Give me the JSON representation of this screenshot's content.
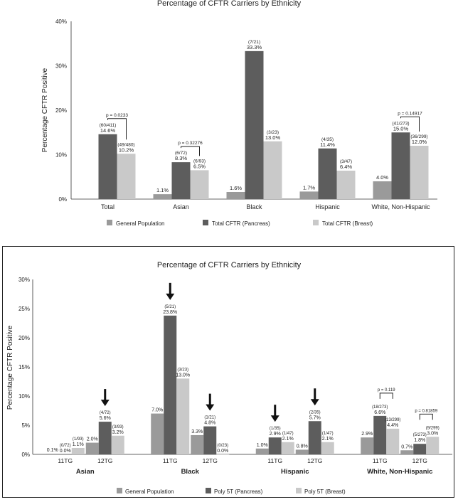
{
  "chart_data": [
    {
      "type": "bar",
      "title": "Percentage of CFTR Carriers by Ethnicity",
      "xlabel": "",
      "ylabel": "Percentage CFTR Positive",
      "ylim": [
        0,
        40
      ],
      "yticks": [
        "0%",
        "10%",
        "20%",
        "30%",
        "40%"
      ],
      "grid": false,
      "legend_position": "bottom",
      "categories": [
        "Total",
        "Asian",
        "Black",
        "Hispanic",
        "White, Non-Hispanic"
      ],
      "series": [
        {
          "name": "General Population",
          "color": "#9a9a9a",
          "values": [
            null,
            1.1,
            1.6,
            1.7,
            4.0
          ],
          "labels": [
            "",
            "1.1%",
            "1.6%",
            "1.7%",
            "4.0%"
          ],
          "counts": [
            "",
            "",
            "",
            "",
            ""
          ]
        },
        {
          "name": "Total CFTR (Pancreas)",
          "color": "#5d5d5d",
          "values": [
            14.6,
            8.3,
            33.3,
            11.4,
            15.0
          ],
          "labels": [
            "14.6%",
            "8.3%",
            "33.3%",
            "11.4%",
            "15.0%"
          ],
          "counts": [
            "(60/411)",
            "(6/72)",
            "(7/21)",
            "(4/35)",
            "(41/273)"
          ]
        },
        {
          "name": "Total CFTR (Breast)",
          "color": "#c9c9c9",
          "values": [
            10.2,
            6.5,
            13.0,
            6.4,
            12.0
          ],
          "labels": [
            "10.2%",
            "6.5%",
            "13.0%",
            "6.4%",
            "12.0%"
          ],
          "counts": [
            "(49/480)",
            "(6/93)",
            "(3/23)",
            "(3/47)",
            "(36/299)"
          ]
        }
      ],
      "annotations": [
        {
          "category": "Total",
          "text": "p = 0.0233"
        },
        {
          "category": "Asian",
          "text": "p = 0.32276"
        },
        {
          "category": "White, Non-Hispanic",
          "text": "p = 0.14917"
        }
      ]
    },
    {
      "type": "bar",
      "title": "Percentage of CFTR Carriers by Ethnicity",
      "xlabel": "",
      "ylabel": "Percentage CFTR Positive",
      "ylim": [
        0,
        30
      ],
      "yticks": [
        "0%",
        "5%",
        "10%",
        "15%",
        "20%",
        "25%",
        "30%"
      ],
      "grid": false,
      "legend_position": "bottom",
      "groups": [
        "Asian",
        "Black",
        "Hispanic",
        "White, Non-Hispanic"
      ],
      "subcategories": [
        "11TG",
        "12TG"
      ],
      "series": [
        {
          "name": "General Population",
          "color": "#9a9a9a",
          "values": [
            0.1,
            2.0,
            7.0,
            3.3,
            1.0,
            0.8,
            2.9,
            0.7
          ],
          "labels": [
            "0.1%",
            "2.0%",
            "7.0%",
            "3.3%",
            "1.0%",
            "0.8%",
            "2.9%",
            "0.7%"
          ],
          "counts": [
            "",
            "",
            "",
            "",
            "",
            "",
            "",
            ""
          ]
        },
        {
          "name": "Poly 5T (Pancreas)",
          "color": "#5d5d5d",
          "values": [
            0.0,
            5.6,
            23.8,
            4.8,
            2.9,
            5.7,
            6.6,
            1.8
          ],
          "labels": [
            "0.0%",
            "5.6%",
            "23.8%",
            "4.8%",
            "2.9%",
            "5.7%",
            "6.6%",
            "1.8%"
          ],
          "counts": [
            "(0/72)",
            "(4/72)",
            "(5/21)",
            "(1/21)",
            "(1/35)",
            "(2/35)",
            "(18/273)",
            "(5/273)"
          ]
        },
        {
          "name": "Poly 5T (Breast)",
          "color": "#c9c9c9",
          "values": [
            1.1,
            3.2,
            13.0,
            0.0,
            2.1,
            2.1,
            4.4,
            3.0
          ],
          "labels": [
            "1.1%",
            "3.2%",
            "13.0%",
            "0.0%",
            "2.1%",
            "2.1%",
            "4.4%",
            "3.0%"
          ],
          "counts": [
            "(1/93)",
            "(3/93)",
            "(3/23)",
            "(0/23)",
            "(1/47)",
            "(1/47)",
            "(13/299)",
            "(9/299)"
          ]
        }
      ],
      "arrows": [
        "Asian 12TG",
        "Black 11TG",
        "Black 12TG",
        "Hispanic 11TG",
        "Hispanic 12TG"
      ],
      "annotations": [
        {
          "category": "White, Non-Hispanic 11TG",
          "text": "p = 0.119"
        },
        {
          "category": "White, Non-Hispanic 12TG",
          "text": "p = 0.81859"
        }
      ]
    }
  ]
}
